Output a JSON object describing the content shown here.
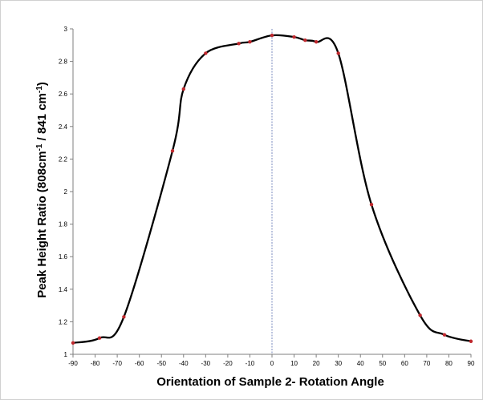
{
  "chart_data": {
    "type": "line",
    "title": "",
    "xlabel": "Orientation of Sample 2- Rotation Angle",
    "ylabel_parts": {
      "main": "Peak Height Ratio (808cm",
      "sup1": "-1",
      "mid": " / 841 cm",
      "sup2": "-1",
      "end": ")"
    },
    "xlim": [
      -90,
      90
    ],
    "ylim": [
      1,
      3
    ],
    "x_ticks": [
      -90,
      -80,
      -70,
      -60,
      -50,
      -40,
      -30,
      -20,
      -10,
      0,
      10,
      20,
      30,
      40,
      50,
      60,
      70,
      80,
      90
    ],
    "y_ticks": [
      "1",
      "1.2",
      "1.4",
      "1.6",
      "1.8",
      "2",
      "2.2",
      "2.4",
      "2.6",
      "2.8",
      "3"
    ],
    "grid": false,
    "reference_line_x": 0,
    "series": [
      {
        "x": [
          -90,
          -78,
          -67,
          -45,
          -40,
          -30,
          -15,
          -10,
          0,
          10,
          15,
          20,
          30,
          45,
          67,
          78,
          90
        ],
        "y": [
          1.07,
          1.1,
          1.23,
          2.25,
          2.63,
          2.85,
          2.91,
          2.92,
          2.96,
          2.95,
          2.93,
          2.92,
          2.85,
          1.92,
          1.24,
          1.12,
          1.08
        ],
        "line_color": "#000000",
        "marker_color": "#c0282d"
      }
    ]
  }
}
